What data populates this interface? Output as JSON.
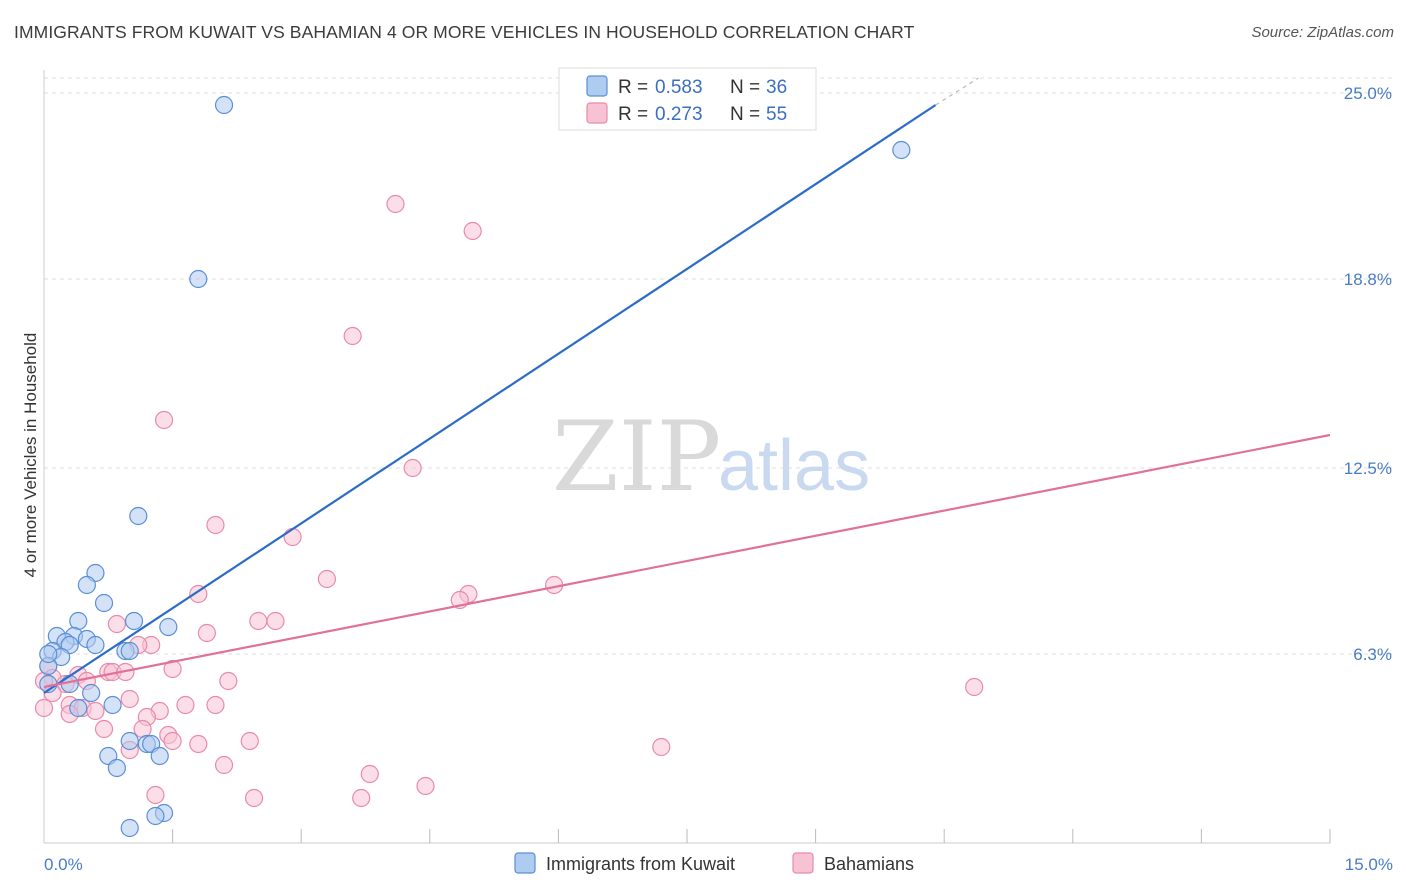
{
  "title": "IMMIGRANTS FROM KUWAIT VS BAHAMIAN 4 OR MORE VEHICLES IN HOUSEHOLD CORRELATION CHART",
  "source": "Source: ZipAtlas.com",
  "watermark": {
    "zip": "ZIP",
    "atlas": "atlas"
  },
  "colors": {
    "blue_fill": "#aecbf0",
    "blue_stroke": "#5b8fd6",
    "blue_line": "#2b6cc8",
    "pink_fill": "#f7c3d4",
    "pink_stroke": "#e88aaa",
    "pink_line": "#e0719a",
    "grid": "#dddddd",
    "tick_label": "#4a7cc4"
  },
  "legend_top": [
    {
      "r_label": "R =",
      "r_value": "0.583",
      "n_label": "N =",
      "n_value": "36",
      "color": "blue"
    },
    {
      "r_label": "R =",
      "r_value": "0.273",
      "n_label": "N =",
      "n_value": "55",
      "color": "pink"
    }
  ],
  "chart_data": {
    "type": "scatter",
    "title": "IMMIGRANTS FROM KUWAIT VS BAHAMIAN 4 OR MORE VEHICLES IN HOUSEHOLD CORRELATION CHART",
    "xlabel": "",
    "ylabel": "4 or more Vehicles in Household",
    "xlim": [
      0,
      15
    ],
    "ylim": [
      0,
      25.5
    ],
    "x_tick_labels": [
      {
        "value": 0,
        "label": "0.0%"
      },
      {
        "value": 15,
        "label": "15.0%"
      }
    ],
    "y_ticks": [
      {
        "value": 6.3,
        "label": "6.3%"
      },
      {
        "value": 12.5,
        "label": "12.5%"
      },
      {
        "value": 18.8,
        "label": "18.8%"
      },
      {
        "value": 25.0,
        "label": "25.0%"
      }
    ],
    "x_minor_ticks": [
      1.5,
      3.0,
      4.5,
      6.0,
      7.5,
      9.0,
      10.5,
      12.0,
      13.5,
      15.0
    ],
    "grid": true,
    "legend_position": "bottom",
    "series": [
      {
        "name": "Immigrants from Kuwait",
        "color": "blue",
        "trend": {
          "x": [
            0,
            10.4
          ],
          "y": [
            5.0,
            24.6
          ],
          "dashed_extension_to": [
            10.9,
            25.5
          ]
        },
        "points": [
          [
            2.1,
            24.6
          ],
          [
            10.0,
            23.1
          ],
          [
            1.8,
            18.8
          ],
          [
            1.1,
            10.9
          ],
          [
            0.6,
            9.0
          ],
          [
            0.5,
            8.6
          ],
          [
            0.7,
            8.0
          ],
          [
            0.4,
            7.4
          ],
          [
            1.05,
            7.4
          ],
          [
            1.45,
            7.2
          ],
          [
            0.15,
            6.9
          ],
          [
            0.35,
            6.9
          ],
          [
            0.5,
            6.8
          ],
          [
            0.25,
            6.7
          ],
          [
            0.3,
            6.6
          ],
          [
            0.6,
            6.6
          ],
          [
            0.95,
            6.4
          ],
          [
            0.1,
            6.4
          ],
          [
            0.2,
            6.2
          ],
          [
            0.05,
            5.9
          ],
          [
            0.05,
            5.3
          ],
          [
            0.55,
            5.0
          ],
          [
            0.3,
            5.3
          ],
          [
            0.8,
            4.6
          ],
          [
            0.4,
            4.5
          ],
          [
            1.0,
            6.4
          ],
          [
            1.0,
            3.4
          ],
          [
            1.2,
            3.3
          ],
          [
            1.25,
            3.3
          ],
          [
            0.75,
            2.9
          ],
          [
            1.35,
            2.9
          ],
          [
            0.85,
            2.5
          ],
          [
            1.4,
            1.0
          ],
          [
            1.3,
            0.9
          ],
          [
            1.0,
            0.5
          ],
          [
            0.05,
            6.3
          ]
        ]
      },
      {
        "name": "Bahamians",
        "color": "pink",
        "trend": {
          "x": [
            0,
            15
          ],
          "y": [
            5.2,
            13.6
          ]
        },
        "points": [
          [
            4.1,
            21.3
          ],
          [
            5.0,
            20.4
          ],
          [
            3.6,
            16.9
          ],
          [
            1.4,
            14.1
          ],
          [
            4.3,
            12.5
          ],
          [
            2.0,
            10.6
          ],
          [
            2.9,
            10.2
          ],
          [
            3.3,
            8.8
          ],
          [
            5.95,
            8.6
          ],
          [
            1.8,
            8.3
          ],
          [
            4.95,
            8.3
          ],
          [
            4.85,
            8.1
          ],
          [
            2.5,
            7.4
          ],
          [
            2.7,
            7.4
          ],
          [
            0.85,
            7.3
          ],
          [
            1.9,
            7.0
          ],
          [
            1.25,
            6.6
          ],
          [
            1.1,
            6.6
          ],
          [
            0.05,
            5.9
          ],
          [
            0.1,
            5.5
          ],
          [
            0.75,
            5.7
          ],
          [
            0.8,
            5.7
          ],
          [
            0.95,
            5.7
          ],
          [
            1.5,
            5.8
          ],
          [
            2.15,
            5.4
          ],
          [
            0.4,
            5.6
          ],
          [
            0.5,
            5.4
          ],
          [
            0.25,
            5.3
          ],
          [
            0.0,
            5.4
          ],
          [
            0.1,
            5.0
          ],
          [
            0.3,
            4.6
          ],
          [
            0.45,
            4.5
          ],
          [
            0.6,
            4.4
          ],
          [
            1.0,
            4.8
          ],
          [
            1.65,
            4.6
          ],
          [
            2.0,
            4.6
          ],
          [
            0.0,
            4.5
          ],
          [
            1.35,
            4.4
          ],
          [
            0.3,
            4.3
          ],
          [
            1.2,
            4.2
          ],
          [
            0.7,
            3.8
          ],
          [
            1.15,
            3.8
          ],
          [
            1.45,
            3.6
          ],
          [
            1.5,
            3.4
          ],
          [
            1.8,
            3.3
          ],
          [
            2.4,
            3.4
          ],
          [
            1.0,
            3.1
          ],
          [
            2.1,
            2.6
          ],
          [
            3.8,
            2.3
          ],
          [
            7.2,
            3.2
          ],
          [
            4.45,
            1.9
          ],
          [
            1.3,
            1.6
          ],
          [
            2.45,
            1.5
          ],
          [
            3.7,
            1.5
          ],
          [
            10.85,
            5.2
          ]
        ]
      }
    ]
  }
}
